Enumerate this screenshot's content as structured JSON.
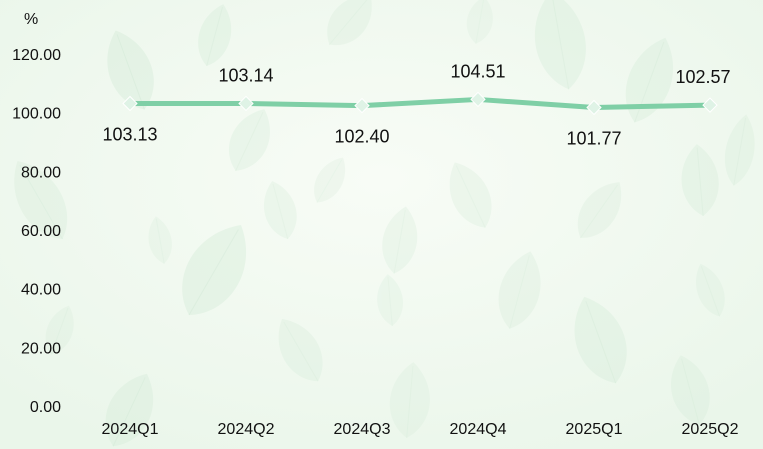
{
  "chart_data": {
    "type": "line",
    "title": "",
    "xlabel": "",
    "ylabel": "%",
    "categories": [
      "2024Q1",
      "2024Q2",
      "2024Q3",
      "2024Q4",
      "2025Q1",
      "2025Q2"
    ],
    "series": [
      {
        "values": [
          103.13,
          103.14,
          102.4,
          104.51,
          101.77,
          102.57
        ]
      }
    ],
    "data_labels": [
      "103.13",
      "103.14",
      "102.40",
      "104.51",
      "101.77",
      "102.57"
    ],
    "ylim": [
      0,
      120
    ],
    "yticks": [
      "0.00",
      "20.00",
      "40.00",
      "60.00",
      "80.00",
      "100.00",
      "120.00"
    ],
    "grid": false,
    "legend": "none",
    "colors": {
      "line": "#7fcfa6",
      "marker": "#dff3e6",
      "background": "#f3faf1",
      "leaf": "#cfe9d4"
    }
  }
}
